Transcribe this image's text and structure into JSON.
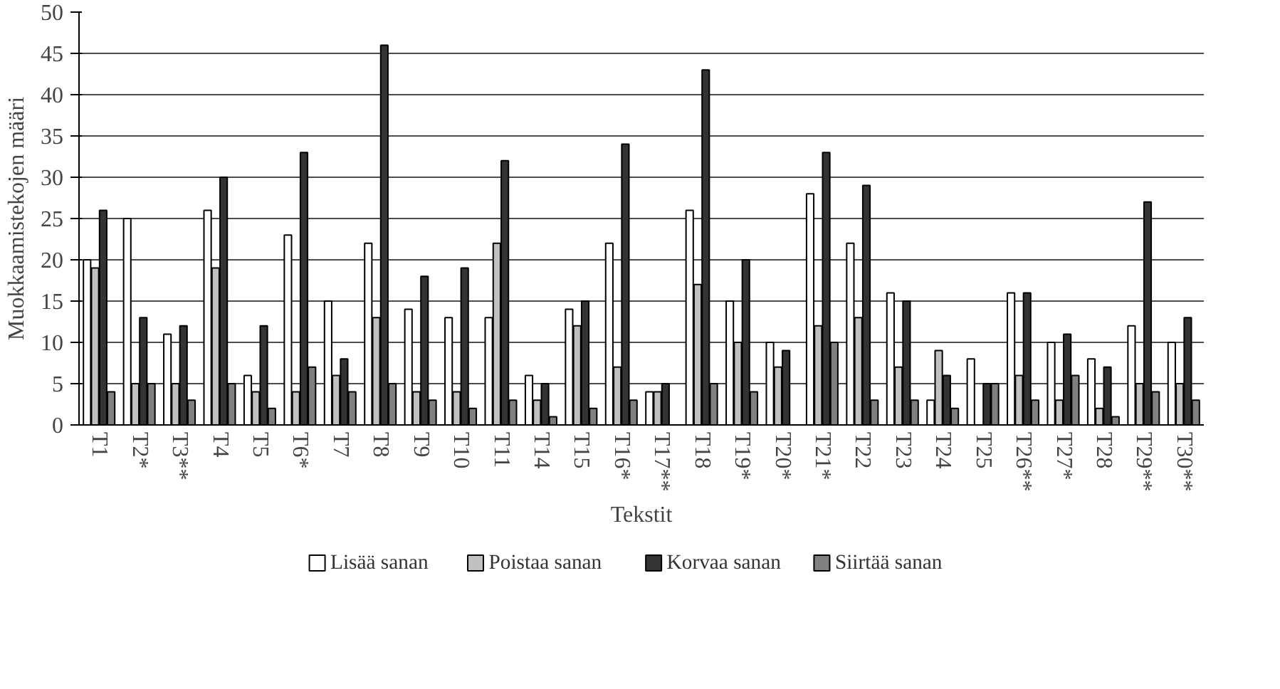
{
  "chart_data": {
    "type": "bar",
    "xlabel": "Tekstit",
    "ylabel": "Muokkaamistekojen määri",
    "categories": [
      "T1",
      "T2*",
      "T3**",
      "T4",
      "T5",
      "T6*",
      "T7",
      "T8",
      "T9",
      "T10",
      "T11",
      "T14",
      "T15",
      "T16*",
      "T17**",
      "T18",
      "T19*",
      "T20*",
      "T21*",
      "T22",
      "T23",
      "T24",
      "T25",
      "T26**",
      "T27*",
      "T28",
      "T29**",
      "T30**"
    ],
    "series": [
      {
        "name": "Lisää sanan",
        "color": "#ffffff",
        "values": [
          20,
          25,
          11,
          26,
          6,
          23,
          15,
          22,
          14,
          13,
          13,
          6,
          14,
          22,
          4,
          26,
          15,
          10,
          28,
          22,
          16,
          3,
          8,
          16,
          10,
          8,
          12,
          10
        ]
      },
      {
        "name": "Poistaa sanan",
        "color": "#c0c0c0",
        "values": [
          19,
          5,
          5,
          19,
          4,
          4,
          6,
          13,
          4,
          4,
          22,
          3,
          12,
          7,
          4,
          17,
          10,
          7,
          12,
          13,
          7,
          9,
          null,
          6,
          3,
          2,
          5,
          5
        ]
      },
      {
        "name": "Korvaa sanan",
        "color": "#333333",
        "values": [
          26,
          13,
          12,
          30,
          12,
          33,
          8,
          46,
          18,
          19,
          32,
          5,
          15,
          34,
          5,
          43,
          20,
          9,
          33,
          29,
          15,
          6,
          5,
          16,
          11,
          7,
          27,
          13
        ]
      },
      {
        "name": "Siirtää sanan",
        "color": "#808080",
        "values": [
          4,
          5,
          3,
          5,
          2,
          7,
          4,
          5,
          3,
          2,
          3,
          1,
          2,
          3,
          null,
          5,
          4,
          null,
          10,
          3,
          3,
          2,
          5,
          3,
          6,
          1,
          4,
          3
        ]
      }
    ],
    "ylim": [
      0,
      50
    ],
    "yticks": [
      0,
      5,
      10,
      15,
      20,
      25,
      30,
      35,
      40,
      45,
      50
    ],
    "grid": "y",
    "legend": "bottom"
  }
}
